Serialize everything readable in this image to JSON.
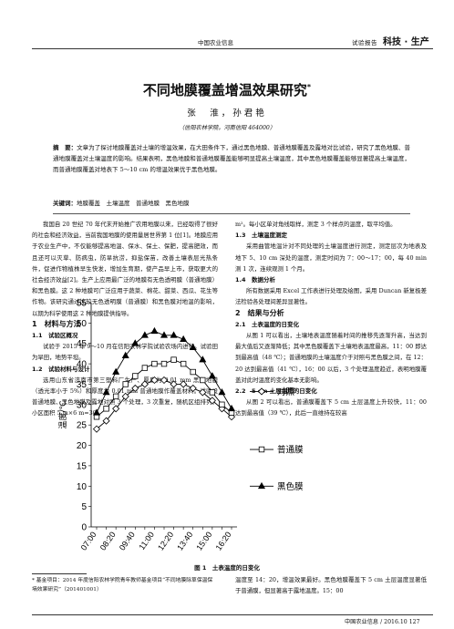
{
  "header": {
    "center": "中国农业信息",
    "journal": "试验报告",
    "section": "科技 · 生产"
  },
  "title": "不同地膜覆盖增温效果研究",
  "title_mark": "*",
  "authors": "张　淮，孙君艳",
  "affiliation": "（信阳农林学院，河南信阳 464000）",
  "abstract_label": "摘　要：",
  "abstract": "文章为了探讨地膜覆盖对土壤的增温效果，在大田条件下，通过黑色地膜、普通地膜覆盖及露地对比试验，研究了黑色地膜、普通地膜覆盖对土壤温度的影响。结果表明，黑色地膜和普通地膜覆盖能够明显提高土壤温度，其中黑色地膜覆盖能够显著提高土壤温度，而普通地膜覆盖对地表下 5～10 cm 的增温效果优于黑色地膜。",
  "keywords_label": "关键词：",
  "keywords": "地膜覆盖　土壤温度　普通地膜　黑色地膜",
  "left_col": [
    {
      "t": "p",
      "text": "我国自 20 世纪 70 年代末开始推广农用地膜以来，已经取得了很好的社会和经济效益，当前我国地膜的使用量居世界第 1 位[1]。地膜应用于农业生产中，不仅能够提高地温、保水、保土、保肥，提高肥效，而且还可以灭草、防病虫，防旱抗涝，抑盐保苗，改善土壤表层光热条件，促进作物植株早生快发，增加生育期，使产品早上市，获取更大的社会经济效益[2]。生产上应用最广泛的地膜有无色透明膜（普通地膜）和黑色膜。这 2 种地膜可广泛应用于蔬菜、棉花、甜菜、西瓜、花生等作物。该研究通过比较无色透明膜（普通膜）和黑色膜对地温的影响，以期为科学使用这 2 种地膜提供指导。"
    },
    {
      "t": "h1",
      "text": "1　材料与方法"
    },
    {
      "t": "h2",
      "text": "1.1　试验区概况"
    },
    {
      "t": "p",
      "text": "试验于 2015 年 9～10 月在信阳农林学院试验农场内进行。试验田为旱田，地势平坦。"
    },
    {
      "t": "h2",
      "text": "1.2　试验材料与设计"
    },
    {
      "t": "p",
      "text": "选用山东省济南市第三塑料厂生产、厚度为 0.01 mm 黑色地膜（透光率小于 5%）和厚度为 0.01 mm 普通地膜作覆盖材料。试验设普通地膜、黑色地膜及露地对照 3 个处理，3 次重复，随机区组排列。小区面积 5 m×6 m=30"
    }
  ],
  "right_col": [
    {
      "t": "p0",
      "text": "m²。每小区单对角线取样，测定 3 个样点的温度，取平均值。"
    },
    {
      "t": "h2",
      "text": "1.3　土壤温度测定"
    },
    {
      "t": "p",
      "text": "采用曲管地温计对不同处理的土壤温度进行测定，测定层次为地表及地下 5、10 cm 深处的温度，测定时间为 7：00～17：00，每 40 min 测 1 次，连续观测 1 个月。"
    },
    {
      "t": "h2",
      "text": "1.4　数据分析"
    },
    {
      "t": "p",
      "text": "所有数据采用 Excel 工作表进行处理及绘图，采用 Duncan 新复极差法检验各处理间差异显著性。"
    },
    {
      "t": "h1",
      "text": "2　结果与分析"
    },
    {
      "t": "h2",
      "text": "2.1　土表温度的日变化"
    },
    {
      "t": "p",
      "text": "从图 1 可以看出，土壤地表温度随着时间的推移先逐渐升高，当达到最大值后又逐渐降低；其中黑色膜覆盖下土壤地表温度最高，11：00 即达到最高值（48 ℃）；普通地膜的土壤温度介于对照与黑色膜之间，在 12：20 达到最高值（41 ℃），16：00 以后，3 个处理温度趋近，表明地膜覆盖对此时温度的变化基本无影响。"
    },
    {
      "t": "h2",
      "text": "2.2　5 cm 土层温度的日变化"
    },
    {
      "t": "p",
      "text": "从图 2 可以看出，普通膜覆盖下 5 cm 土层温度上升较快，11：00 达到最高值（39 ℃），此后一直维持在较高"
    }
  ],
  "chart_data": {
    "type": "line",
    "title": "",
    "ylabel": "温度/℃",
    "xlabel": "",
    "ylim": [
      0,
      55
    ],
    "yticks": [
      0,
      5,
      10,
      15,
      20,
      25,
      30,
      35,
      40,
      45,
      50,
      55
    ],
    "categories": [
      "07:00",
      "07:40",
      "08:20",
      "09:00",
      "09:40",
      "10:20",
      "11:00",
      "11:40",
      "12:20",
      "13:00",
      "13:40",
      "14:20",
      "15:00",
      "15:40",
      "16:20"
    ],
    "xticklabels": [
      "07:00",
      "08:20",
      "09:40",
      "11:00",
      "12:20",
      "13:40",
      "15:00",
      "16:20"
    ],
    "legend_position": "right",
    "series": [
      {
        "name": "对照",
        "marker": "diamond",
        "values": [
          24,
          26,
          29,
          32,
          34,
          35,
          36,
          36,
          35,
          35,
          34,
          33,
          31,
          29,
          27
        ]
      },
      {
        "name": "普通膜",
        "marker": "square",
        "values": [
          27,
          29,
          32,
          35,
          37,
          39,
          40,
          40,
          41,
          40,
          38,
          36,
          33,
          30,
          28
        ]
      },
      {
        "name": "黑色膜",
        "marker": "triangle",
        "values": [
          28,
          33,
          38,
          42,
          45,
          47,
          48,
          47,
          47,
          46,
          44,
          41,
          37,
          33,
          29
        ]
      }
    ]
  },
  "figure_caption": "图 1　土表温度的日变化",
  "footnote": "* 基金项目：2014 年度信阳农林学院青年教师基金项目“不同地膜除草保温保墒效果研究”（201401001）",
  "right_tail": [
    {
      "t": "p0",
      "text": "温度至 14：20，增温效果最好。黑色地膜覆盖下 5 cm 土层温度显著低于普通膜，但显著高于露地温度。15：00"
    }
  ],
  "page_footer": "中国农业信息 / 2016.10 127"
}
